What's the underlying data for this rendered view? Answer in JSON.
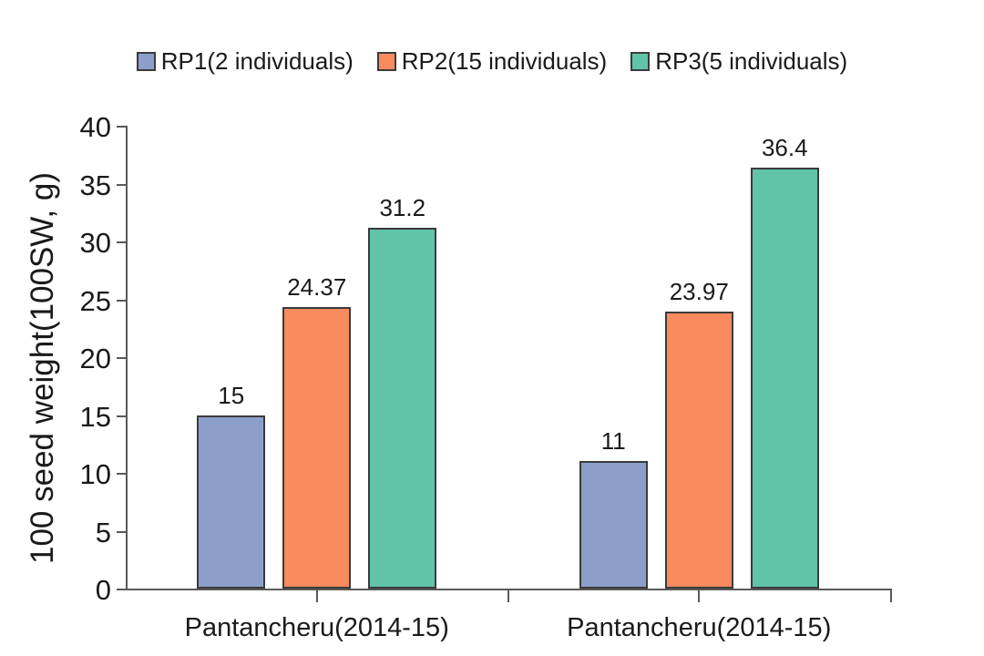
{
  "chart_data": {
    "type": "bar",
    "title": "",
    "categories": [
      "Pantancheru(2014-15)",
      "Pantancheru(2014-15)"
    ],
    "series": [
      {
        "name": "RP1(2 individuals)",
        "color": "#8C9FCB",
        "values": [
          15,
          11
        ]
      },
      {
        "name": "RP2(15 individuals)",
        "color": "#FA8B5E",
        "values": [
          24.37,
          23.97
        ]
      },
      {
        "name": "RP3(5 individuals)",
        "color": "#61C3A8",
        "values": [
          31.2,
          36.4
        ]
      }
    ],
    "xlabel": "",
    "ylabel": "100 seed weight(100SW, g)",
    "ylim": [
      0,
      40
    ],
    "yticks": [
      0,
      5,
      10,
      15,
      20,
      25,
      30,
      35,
      40
    ],
    "grid": false,
    "legend_position": "top",
    "data_labels_visible": true
  },
  "colors": {
    "bar_border": "#3B3B3B",
    "axis": "#595959",
    "text": "#1A1A1A",
    "background": "#FFFFFF"
  }
}
